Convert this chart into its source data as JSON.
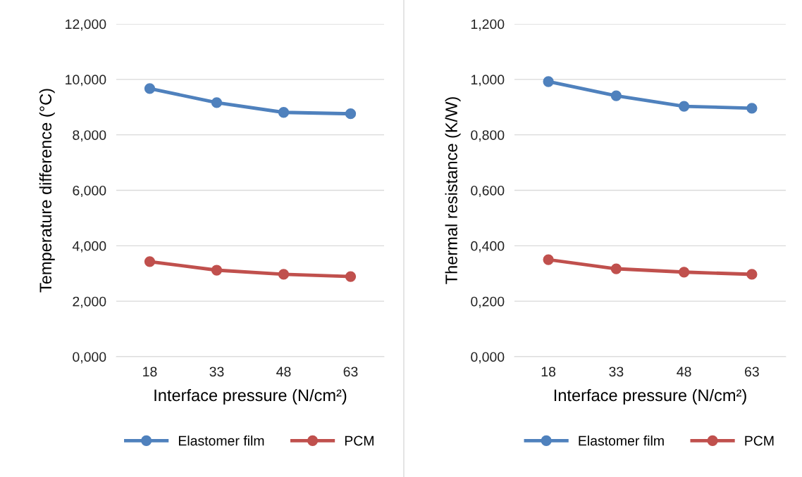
{
  "chart_data": [
    {
      "type": "line",
      "categories": [
        "18",
        "33",
        "48",
        "63"
      ],
      "xlabel": "Interface pressure (N/cm²)",
      "ylabel": "Temperature difference (°C)",
      "ylim": [
        0,
        12
      ],
      "yticks": [
        {
          "value": 0,
          "label": "0,000"
        },
        {
          "value": 2,
          "label": "2,000"
        },
        {
          "value": 4,
          "label": "4,000"
        },
        {
          "value": 6,
          "label": "6,000"
        },
        {
          "value": 8,
          "label": "8,000"
        },
        {
          "value": 10,
          "label": "10,000"
        },
        {
          "value": 12,
          "label": "12,000"
        }
      ],
      "grid": "y",
      "legend": "bottom",
      "marker": "circle",
      "line_style": "solid",
      "series": [
        {
          "name": "Elastomer film",
          "color": "#4f81bd",
          "values": [
            9.67,
            9.16,
            8.81,
            8.76
          ]
        },
        {
          "name": "PCM",
          "color": "#c0504d",
          "values": [
            3.43,
            3.12,
            2.97,
            2.89
          ]
        }
      ]
    },
    {
      "type": "line",
      "categories": [
        "18",
        "33",
        "48",
        "63"
      ],
      "xlabel": "Interface pressure (N/cm²)",
      "ylabel": "Thermal resistance (K/W)",
      "ylim": [
        0,
        1.2
      ],
      "yticks": [
        {
          "value": 0,
          "label": "0,000"
        },
        {
          "value": 0.2,
          "label": "0,200"
        },
        {
          "value": 0.4,
          "label": "0,400"
        },
        {
          "value": 0.6,
          "label": "0,600"
        },
        {
          "value": 0.8,
          "label": "0,800"
        },
        {
          "value": 1.0,
          "label": "1,000"
        },
        {
          "value": 1.2,
          "label": "1,200"
        }
      ],
      "grid": "y",
      "legend": "bottom",
      "marker": "circle",
      "line_style": "solid",
      "series": [
        {
          "name": "Elastomer film",
          "color": "#4f81bd",
          "values": [
            0.992,
            0.941,
            0.903,
            0.896
          ]
        },
        {
          "name": "PCM",
          "color": "#c0504d",
          "values": [
            0.35,
            0.317,
            0.305,
            0.297
          ]
        }
      ]
    }
  ]
}
